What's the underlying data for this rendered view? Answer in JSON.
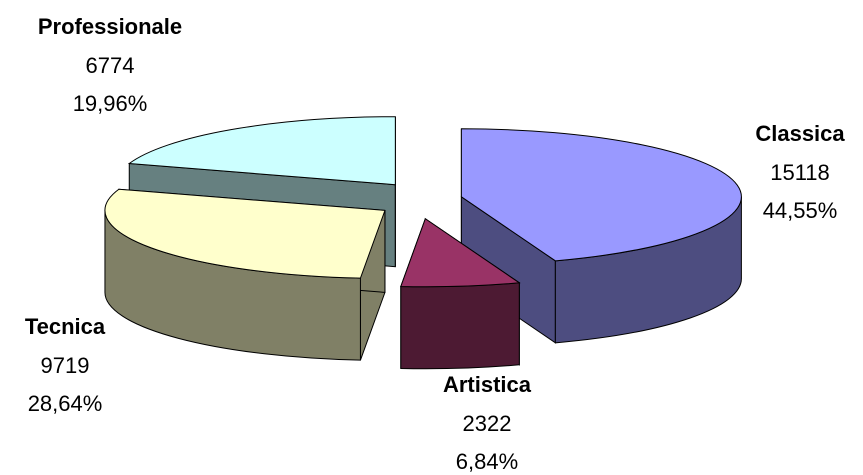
{
  "chart_data": {
    "type": "pie",
    "categories": [
      "Classica",
      "Artistica",
      "Tecnica",
      "Professionale"
    ],
    "values": [
      15118,
      2322,
      9719,
      6774
    ],
    "percent_labels": [
      "44,55%",
      "6,84%",
      "28,64%",
      "19,96%"
    ],
    "colors": [
      "#9999ff",
      "#993366",
      "#ffffcc",
      "#ccffff"
    ],
    "side_colors": [
      "#4d4d80",
      "#4d1a33",
      "#808066",
      "#668080"
    ]
  }
}
